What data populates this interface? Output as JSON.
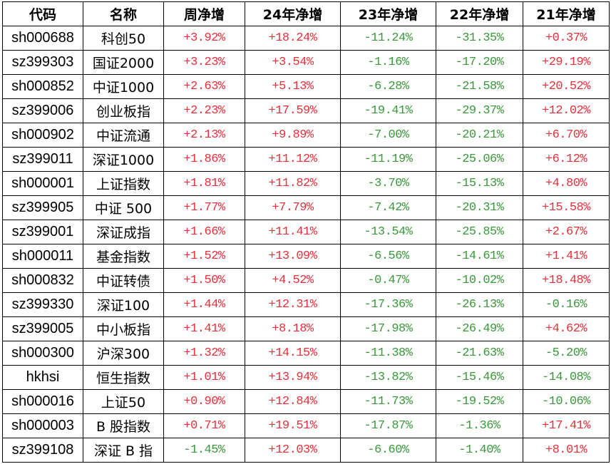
{
  "colors": {
    "positive": "#e8303a",
    "negative": "#3a983a",
    "border": "#000000"
  },
  "headers": [
    "代码",
    "名称",
    "周净增",
    "24年净增",
    "23年净增",
    "22年净增",
    "21年净增"
  ],
  "rows": [
    [
      "sh000688",
      "科创50",
      "+3.92%",
      "+18.24%",
      "-11.24%",
      "-31.35%",
      "+0.37%"
    ],
    [
      "sz399303",
      "国证2000",
      "+3.23%",
      "+3.54%",
      "-1.16%",
      "-17.20%",
      "+29.19%"
    ],
    [
      "sh000852",
      "中证1000",
      "+2.63%",
      "+5.13%",
      "-6.28%",
      "-21.58%",
      "+20.52%"
    ],
    [
      "sz399006",
      "创业板指",
      "+2.23%",
      "+17.59%",
      "-19.41%",
      "-29.37%",
      "+12.02%"
    ],
    [
      "sh000902",
      "中证流通",
      "+2.13%",
      "+9.89%",
      "-7.00%",
      "-20.21%",
      "+6.70%"
    ],
    [
      "sz399011",
      "深证1000",
      "+1.86%",
      "+11.12%",
      "-11.19%",
      "-25.06%",
      "+6.12%"
    ],
    [
      "sh000001",
      "上证指数",
      "+1.81%",
      "+11.82%",
      "-3.70%",
      "-15.13%",
      "+4.80%"
    ],
    [
      "sz399905",
      "中证 500",
      "+1.77%",
      "+7.79%",
      "-7.42%",
      "-20.31%",
      "+15.58%"
    ],
    [
      "sz399001",
      "深证成指",
      "+1.66%",
      "+11.41%",
      "-13.54%",
      "-25.85%",
      "+2.67%"
    ],
    [
      "sh000011",
      "基金指数",
      "+1.52%",
      "+13.09%",
      "-6.56%",
      "-14.61%",
      "+1.41%"
    ],
    [
      "sh000832",
      "中证转债",
      "+1.50%",
      "+4.52%",
      "-0.47%",
      "-10.02%",
      "+18.48%"
    ],
    [
      "sz399330",
      "深证100",
      "+1.44%",
      "+12.31%",
      "-17.36%",
      "-26.13%",
      "-0.16%"
    ],
    [
      "sz399005",
      "中小板指",
      "+1.41%",
      "+8.18%",
      "-17.98%",
      "-26.49%",
      "+4.62%"
    ],
    [
      "sh000300",
      "沪深300",
      "+1.32%",
      "+14.15%",
      "-11.38%",
      "-21.63%",
      "-5.20%"
    ],
    [
      "hkhsi",
      "恒生指数",
      "+1.01%",
      "+13.94%",
      "-13.82%",
      "-15.46%",
      "-14.08%"
    ],
    [
      "sh000016",
      "上证50",
      "+0.90%",
      "+12.84%",
      "-11.73%",
      "-19.52%",
      "-10.06%"
    ],
    [
      "sh000003",
      "B 股指数",
      "+0.71%",
      "+19.51%",
      "-17.87%",
      "-1.36%",
      "+17.41%"
    ],
    [
      "sz399108",
      "深证 B 指",
      "-1.45%",
      "+12.03%",
      "-6.60%",
      "-1.40%",
      "+8.01%"
    ]
  ]
}
